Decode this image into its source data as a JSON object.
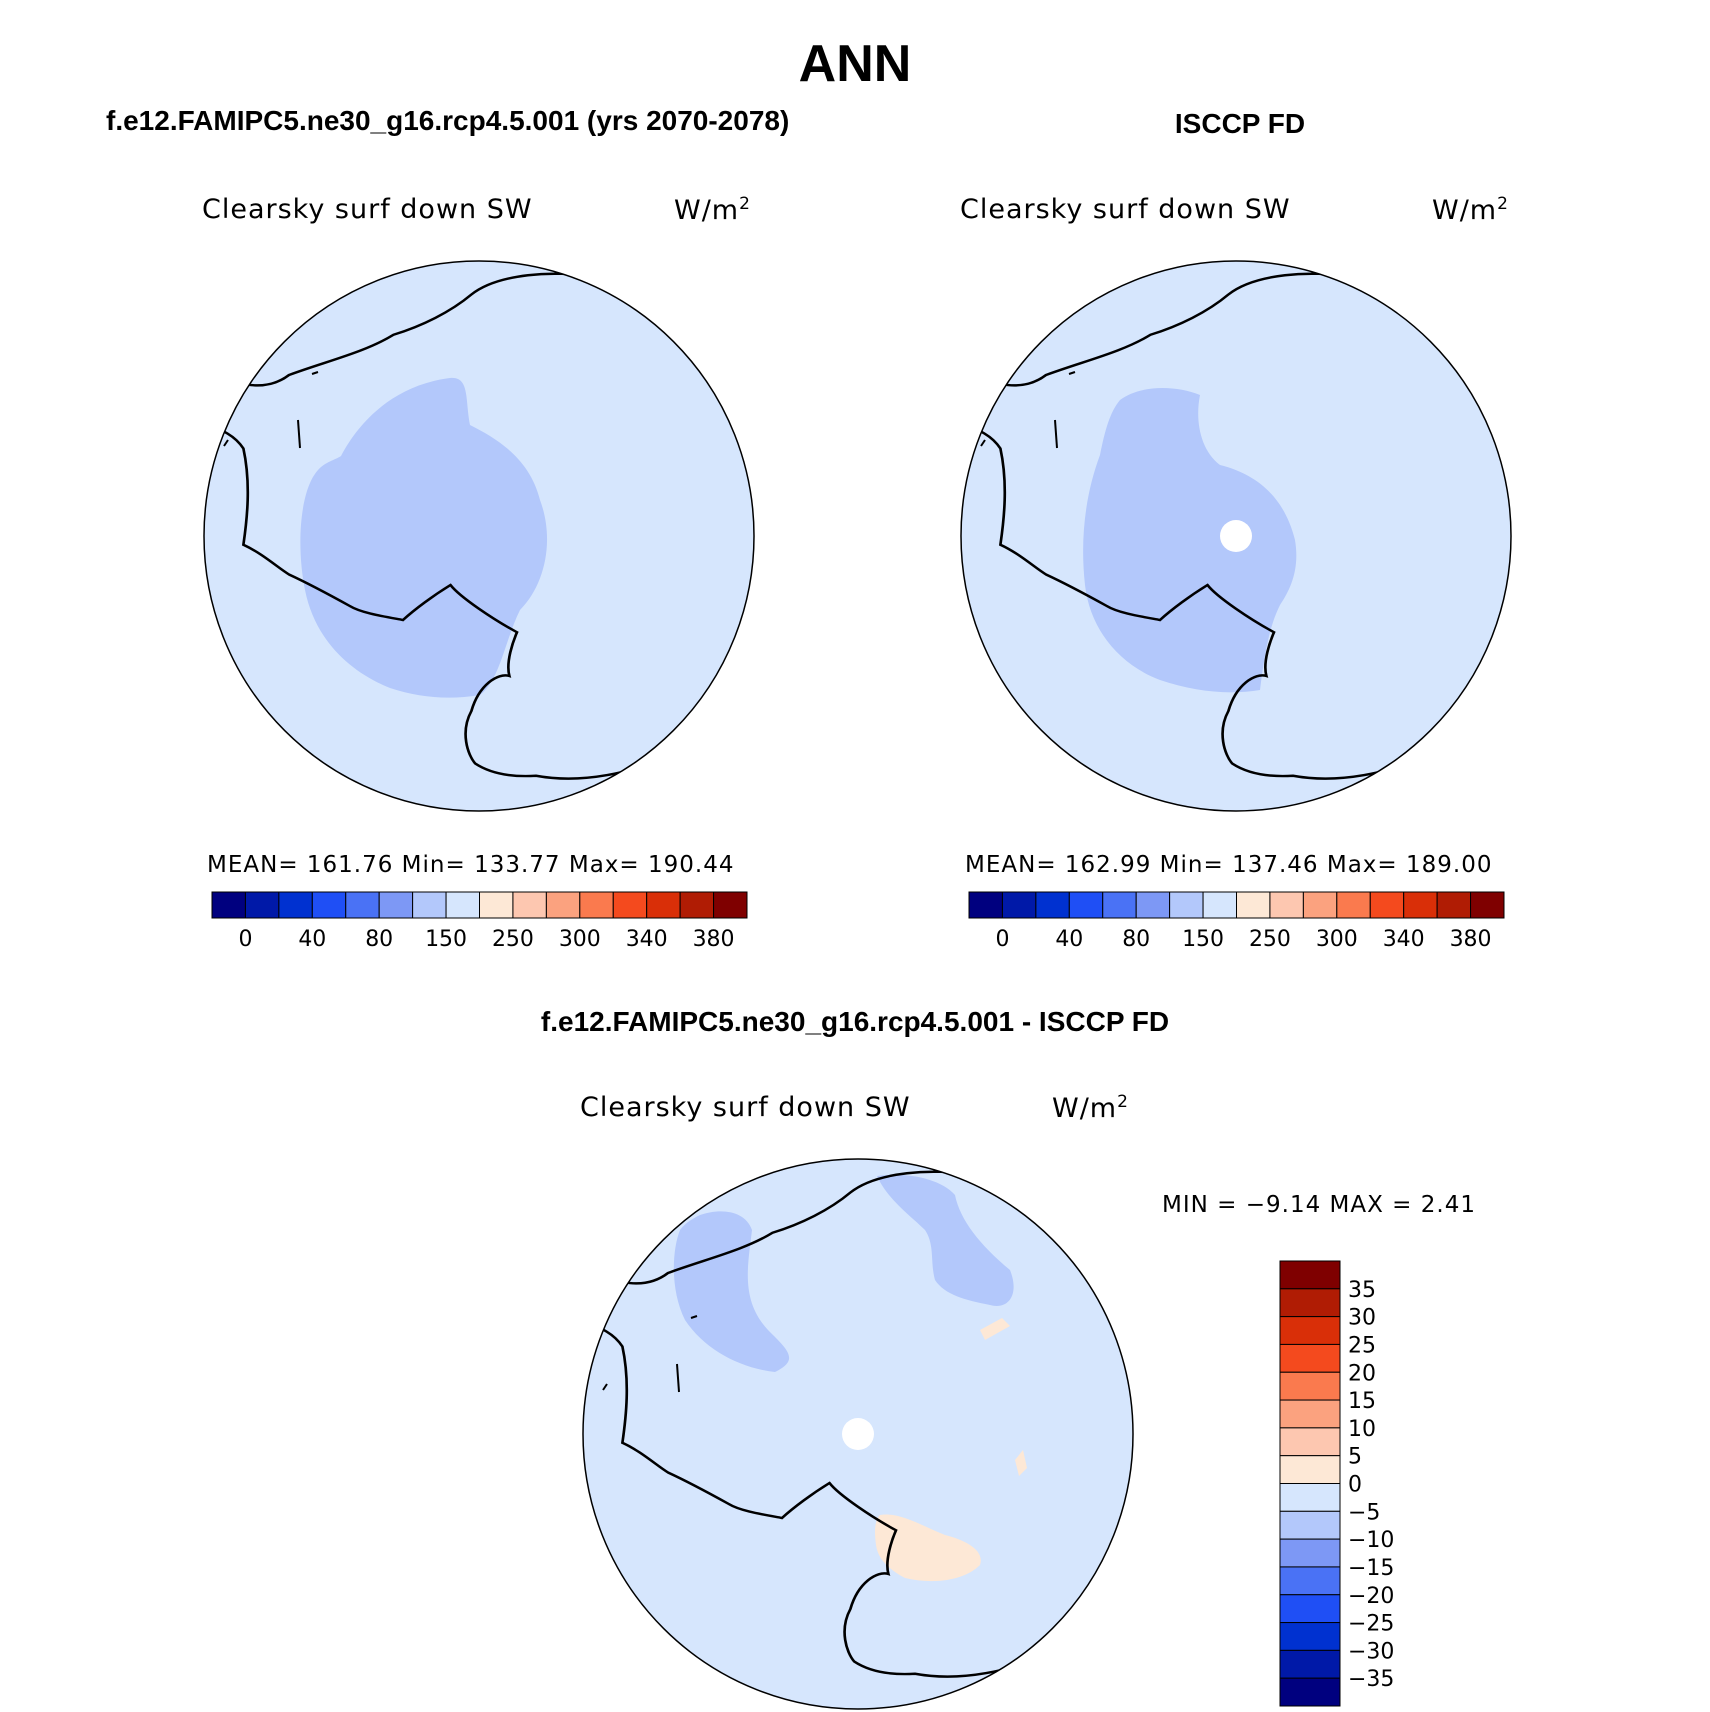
{
  "title": "ANN",
  "panels": [
    {
      "title": "f.e12.FAMIPC5.ne30_g16.rcp4.5.001 (yrs 2070-2078)",
      "variable": "Clearsky surf down SW",
      "units": "W/m",
      "units_exp": "2",
      "stats": "MEAN=  161.76   Min=  133.77   Max=  190.44",
      "mean": 161.76,
      "min": 133.77,
      "max": 190.44
    },
    {
      "title": "ISCCP FD",
      "variable": "Clearsky surf down SW",
      "units": "W/m",
      "units_exp": "2",
      "stats": "MEAN=  162.99   Min=  137.46   Max=  189.00",
      "mean": 162.99,
      "min": 137.46,
      "max": 189.0
    }
  ],
  "diff_panel": {
    "title": "f.e12.FAMIPC5.ne30_g16.rcp4.5.001 - ISCCP FD",
    "variable": "Clearsky surf down SW",
    "units": "W/m",
    "units_exp": "2",
    "stats": "MIN =   −9.14  MAX =     2.41",
    "min": -9.14,
    "max": 2.41
  },
  "colorbar_abs": {
    "colors": [
      "#00007f",
      "#0019a8",
      "#0031d0",
      "#1f4ff5",
      "#4a72f5",
      "#7d98f5",
      "#b3c8fb",
      "#d6e6fd",
      "#fde8d6",
      "#fdc7b0",
      "#fba27f",
      "#fa7a4e",
      "#f44a1e",
      "#d92f08",
      "#b01c04",
      "#7f0000"
    ],
    "tick_labels": [
      "0",
      "40",
      "80",
      "150",
      "250",
      "300",
      "340",
      "380"
    ]
  },
  "colorbar_diff": {
    "colors": [
      "#7f0000",
      "#b01c04",
      "#d92f08",
      "#f44a1e",
      "#fa7a4e",
      "#fba27f",
      "#fdc7b0",
      "#fde8d6",
      "#d6e6fd",
      "#b3c8fb",
      "#7d98f5",
      "#4a72f5",
      "#1f4ff5",
      "#0031d0",
      "#0019a8",
      "#00007f"
    ],
    "tick_labels": [
      "35",
      "30",
      "25",
      "20",
      "15",
      "10",
      "5",
      "0",
      "−5",
      "−10",
      "−15",
      "−20",
      "−25",
      "−30",
      "−35"
    ]
  },
  "map_colors": {
    "ocean": "#d6e6fd",
    "interior_low": "#b3c8fb",
    "positive": "#fde8d6",
    "missing": "#ffffff",
    "coast": "#000000"
  }
}
